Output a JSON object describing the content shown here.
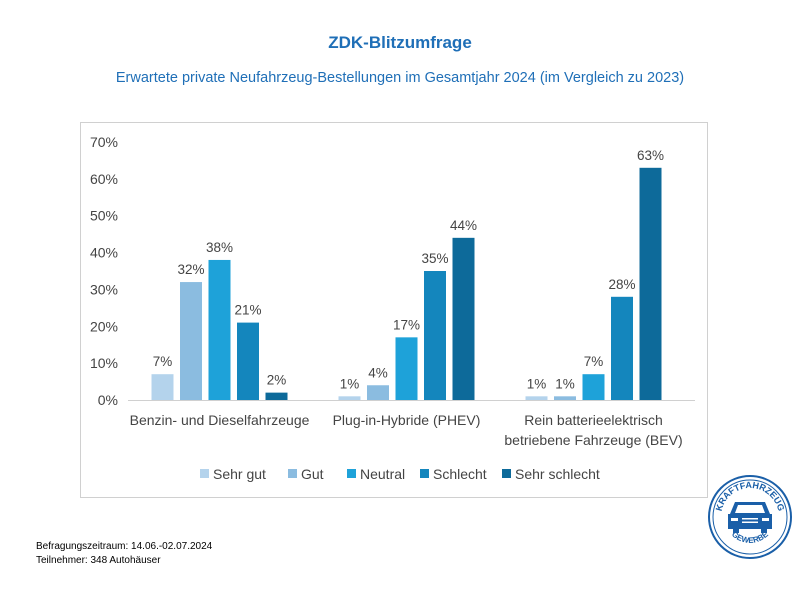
{
  "title": "ZDK-Blitzumfrage",
  "subtitle": "Erwartete private Neufahrzeug-Bestellungen im Gesamtjahr 2024 (im Vergleich zu 2023)",
  "footer": {
    "period": "Befragungszeitraum: 14.06.-02.07.2024",
    "participants": "Teilnehmer: 348 Autohäuser"
  },
  "logo": {
    "top": "KRAFTFAHRZEUG",
    "bottom": "GEWERBE"
  },
  "chart_data": {
    "type": "bar",
    "title": "",
    "categories": [
      [
        "Benzin- und Dieselfahrzeuge"
      ],
      [
        "Plug-in-Hybride (PHEV)"
      ],
      [
        "Rein batterieelektrisch",
        "betriebene Fahrzeuge (BEV)"
      ]
    ],
    "series": [
      {
        "name": "Sehr gut",
        "color": "#b4d3ec",
        "values": [
          7,
          1,
          1
        ]
      },
      {
        "name": "Gut",
        "color": "#8bbce0",
        "values": [
          32,
          4,
          1
        ]
      },
      {
        "name": "Neutral",
        "color": "#1ea2d9",
        "values": [
          38,
          17,
          7
        ]
      },
      {
        "name": "Schlecht",
        "color": "#1486bd",
        "values": [
          21,
          35,
          28
        ]
      },
      {
        "name": "Sehr schlecht",
        "color": "#0d6a9a",
        "values": [
          2,
          44,
          63
        ]
      }
    ],
    "data_labels": [
      [
        "7%",
        "1%",
        "1%"
      ],
      [
        "32%",
        "4%",
        "1%"
      ],
      [
        "38%",
        "17%",
        "7%"
      ],
      [
        "21%",
        "35%",
        "28%"
      ],
      [
        "2%",
        "44%",
        "63%"
      ]
    ],
    "yticks": [
      "0%",
      "10%",
      "20%",
      "30%",
      "40%",
      "50%",
      "60%",
      "70%"
    ],
    "ylim": [
      0,
      70
    ],
    "grid": false,
    "legend": "bottom"
  }
}
